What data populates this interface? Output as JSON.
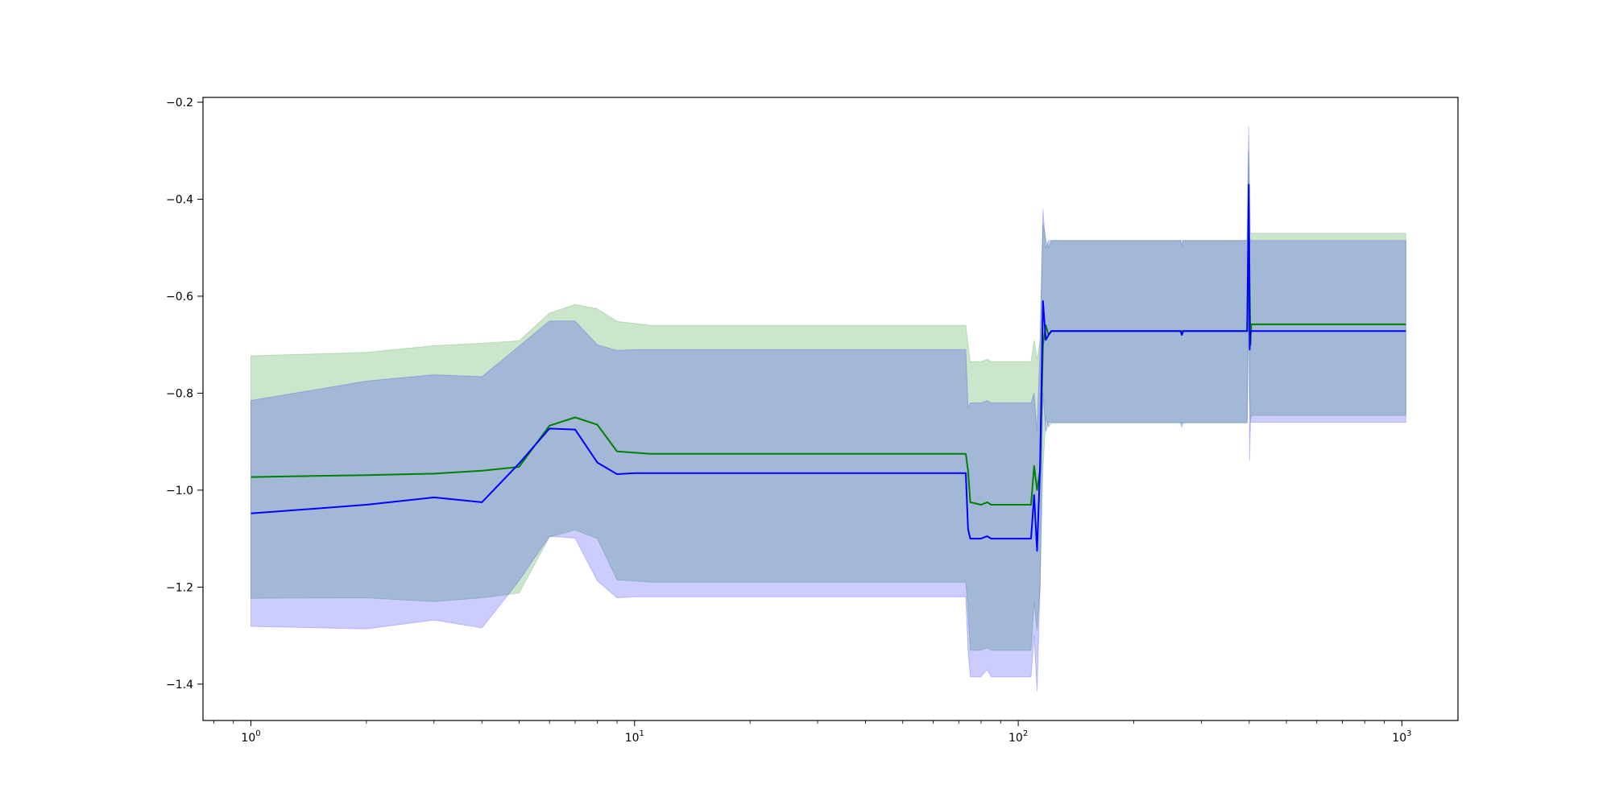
{
  "chart_data": {
    "type": "line",
    "title": "",
    "xlabel": "",
    "ylabel": "",
    "xscale": "log",
    "xlim": [
      0.75,
      1400
    ],
    "ylim": [
      -1.475,
      -0.19
    ],
    "grid": false,
    "x_ticks": [
      {
        "value": 1,
        "base": "10",
        "exp": "0"
      },
      {
        "value": 10,
        "base": "10",
        "exp": "1"
      },
      {
        "value": 100,
        "base": "10",
        "exp": "2"
      },
      {
        "value": 1000,
        "base": "10",
        "exp": "3"
      }
    ],
    "y_ticks": [
      {
        "value": -1.4,
        "label": "−1.4"
      },
      {
        "value": -1.2,
        "label": "−1.2"
      },
      {
        "value": -1.0,
        "label": "−1.0"
      },
      {
        "value": -0.8,
        "label": "−0.8"
      },
      {
        "value": -0.6,
        "label": "−0.6"
      },
      {
        "value": -0.4,
        "label": "−0.4"
      },
      {
        "value": -0.2,
        "label": "−0.2"
      }
    ],
    "series": [
      {
        "color": "#008000",
        "band_color": "#008000",
        "band_opacity": 0.2,
        "x": [
          1,
          2,
          3,
          4,
          5,
          6,
          7,
          8,
          9,
          11,
          73,
          74,
          75,
          80,
          83,
          85,
          108,
          110,
          112,
          114,
          116,
          118,
          120,
          122,
          265,
          395,
          397,
          399,
          401,
          403,
          405,
          1024
        ],
        "y": [
          -0.973,
          -0.969,
          -0.966,
          -0.96,
          -0.952,
          -0.867,
          -0.85,
          -0.865,
          -0.92,
          -0.925,
          -0.925,
          -0.96,
          -1.025,
          -1.03,
          -1.025,
          -1.03,
          -1.03,
          -0.95,
          -1.0,
          -0.96,
          -0.7,
          -0.66,
          -0.68,
          -0.672,
          -0.672,
          -0.672,
          -0.56,
          -0.42,
          -0.58,
          -0.7,
          -0.658,
          -0.658
        ],
        "upper": [
          -0.723,
          -0.716,
          -0.702,
          -0.697,
          -0.692,
          -0.635,
          -0.617,
          -0.626,
          -0.652,
          -0.66,
          -0.66,
          -0.7,
          -0.735,
          -0.735,
          -0.73,
          -0.735,
          -0.735,
          -0.69,
          -0.73,
          -0.69,
          -0.45,
          -0.48,
          -0.5,
          -0.485,
          -0.485,
          -0.485,
          -0.38,
          -0.3,
          -0.38,
          -0.47,
          -0.47,
          -0.47
        ],
        "lower": [
          -1.223,
          -1.222,
          -1.23,
          -1.222,
          -1.212,
          -1.097,
          -1.082,
          -1.1,
          -1.185,
          -1.19,
          -1.19,
          -1.25,
          -1.33,
          -1.33,
          -1.325,
          -1.33,
          -1.33,
          -1.23,
          -1.29,
          -1.2,
          -0.96,
          -0.85,
          -0.87,
          -0.862,
          -0.862,
          -0.862,
          -0.76,
          -0.6,
          -0.8,
          -0.86,
          -0.846,
          -0.846
        ]
      },
      {
        "color": "#0000ff",
        "band_color": "#0000ff",
        "band_opacity": 0.2,
        "x": [
          1,
          2,
          3,
          4,
          5,
          6,
          7,
          8,
          9,
          10,
          11,
          73,
          74,
          75,
          80,
          83,
          85,
          108,
          110,
          112,
          114,
          116,
          118,
          120,
          122,
          265,
          267,
          269,
          395,
          397,
          399,
          401,
          403,
          405,
          1024
        ],
        "y": [
          -1.048,
          -1.03,
          -1.015,
          -1.025,
          -0.945,
          -0.873,
          -0.875,
          -0.943,
          -0.967,
          -0.965,
          -0.965,
          -0.965,
          -1.08,
          -1.1,
          -1.1,
          -1.095,
          -1.1,
          -1.1,
          -1.01,
          -1.125,
          -0.95,
          -0.61,
          -0.69,
          -0.68,
          -0.672,
          -0.672,
          -0.68,
          -0.672,
          -0.672,
          -0.52,
          -0.37,
          -0.71,
          -0.672,
          -0.672,
          -0.672
        ],
        "upper": [
          -0.815,
          -0.775,
          -0.762,
          -0.766,
          -0.703,
          -0.651,
          -0.651,
          -0.7,
          -0.712,
          -0.71,
          -0.71,
          -0.71,
          -0.83,
          -0.82,
          -0.82,
          -0.815,
          -0.82,
          -0.82,
          -0.8,
          -0.88,
          -0.7,
          -0.42,
          -0.5,
          -0.485,
          -0.485,
          -0.485,
          -0.495,
          -0.485,
          -0.485,
          -0.33,
          -0.25,
          -0.48,
          -0.485,
          -0.485,
          -0.485
        ],
        "lower": [
          -1.281,
          -1.286,
          -1.268,
          -1.284,
          -1.187,
          -1.095,
          -1.099,
          -1.187,
          -1.222,
          -1.22,
          -1.22,
          -1.22,
          -1.33,
          -1.385,
          -1.385,
          -1.37,
          -1.385,
          -1.385,
          -1.3,
          -1.415,
          -1.2,
          -0.8,
          -0.88,
          -0.86,
          -0.86,
          -0.86,
          -0.87,
          -0.86,
          -0.86,
          -0.71,
          -0.49,
          -0.94,
          -0.86,
          -0.86,
          -0.86
        ]
      }
    ]
  }
}
